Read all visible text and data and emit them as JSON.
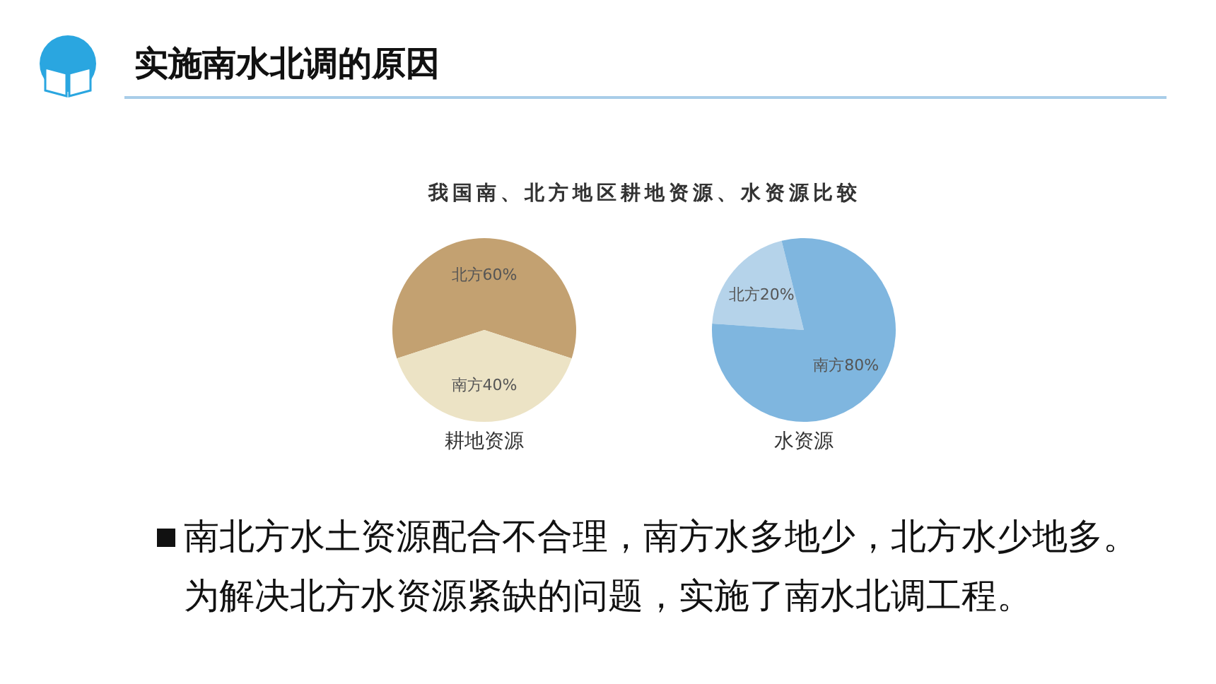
{
  "chart_data": [
    {
      "type": "pie",
      "title": "实施南水北调的原因",
      "subtitle": "我国南、北方地区耕地资源、水资源比较",
      "xlabel": "耕地资源",
      "categories": [
        "北方",
        "南方"
      ],
      "values": [
        60,
        40
      ],
      "colors": [
        "#c3a171",
        "#ece3c5"
      ],
      "value_labels": [
        "60%",
        "40%"
      ],
      "annotations": [
        "南北方水土资源配合不合理，南方水多地少，北方水少地多。",
        "为解决北方水资源紧缺的问题，实施了南水北调工程。"
      ]
    },
    {
      "type": "pie",
      "xlabel": "水资源",
      "categories": [
        "北方",
        "南方"
      ],
      "values": [
        20,
        80
      ],
      "colors": [
        "#b5d3ea",
        "#7fb6df"
      ],
      "value_labels": [
        "20%",
        "80%"
      ]
    }
  ]
}
